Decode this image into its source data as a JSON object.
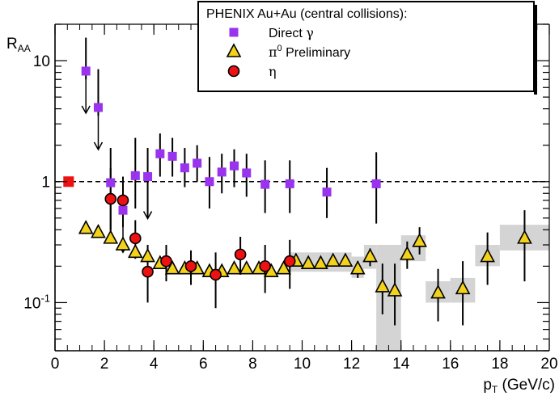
{
  "chart_data": {
    "type": "scatter",
    "title": "",
    "xlabel": {
      "main": "p",
      "sub": "T",
      "rest": " (GeV/c)"
    },
    "ylabel": {
      "main": "R",
      "sub": "AA"
    },
    "xlim": [
      0,
      20
    ],
    "ylim": [
      0.04,
      20
    ],
    "yscale": "log",
    "x_ticks": [
      "0",
      "2",
      "4",
      "6",
      "8",
      "10",
      "12",
      "14",
      "16",
      "18",
      "20"
    ],
    "y_ticks": [
      {
        "value": 0.1,
        "base": "10",
        "exp": "-1"
      },
      {
        "value": 1,
        "base": "1",
        "exp": ""
      },
      {
        "value": 10,
        "base": "10",
        "exp": ""
      }
    ],
    "reference_line": {
      "y": 1,
      "style": "dashed"
    },
    "normalization_marker": {
      "x": 0.55,
      "y": 1.0,
      "color": "#ee1111"
    },
    "legend": {
      "position": "top-right",
      "title": "PHENIX Au+Au (central collisions):",
      "entries": [
        {
          "label_main": "Direct ",
          "label_greek": "γ",
          "label_sup": "",
          "label_rest": "",
          "marker": "square",
          "color": "#9933ee"
        },
        {
          "label_main": "",
          "label_greek": "π",
          "label_sup": "0",
          "label_rest": " Preliminary",
          "marker": "triangle",
          "color": "#f2d21a"
        },
        {
          "label_main": "",
          "label_greek": "η",
          "label_sup": "",
          "label_rest": "",
          "marker": "circle",
          "color": "#ee1111"
        }
      ]
    },
    "series": [
      {
        "name": "Direct γ",
        "marker": "square",
        "color": "#9933ee",
        "points": [
          {
            "x": 1.25,
            "y": 8.2,
            "lo": 7.0,
            "hi": 15.5,
            "upper_limit_arrow": true
          },
          {
            "x": 1.75,
            "y": 4.1,
            "lo": 3.5,
            "hi": 8.5,
            "upper_limit_arrow": true
          },
          {
            "x": 2.25,
            "y": 0.98,
            "lo": 0.4,
            "hi": 1.9
          },
          {
            "x": 2.75,
            "y": 0.58,
            "lo": 0.48,
            "hi": 1.0,
            "upper_limit_arrow": true
          },
          {
            "x": 3.25,
            "y": 1.12,
            "lo": 0.6,
            "hi": 2.3
          },
          {
            "x": 3.75,
            "y": 1.1,
            "lo": 0.5,
            "hi": 1.9,
            "upper_limit_arrow": true
          },
          {
            "x": 4.25,
            "y": 1.7,
            "lo": 1.1,
            "hi": 2.5
          },
          {
            "x": 4.75,
            "y": 1.62,
            "lo": 1.1,
            "hi": 2.3
          },
          {
            "x": 5.25,
            "y": 1.3,
            "lo": 0.9,
            "hi": 1.9
          },
          {
            "x": 5.75,
            "y": 1.42,
            "lo": 1.0,
            "hi": 2.0
          },
          {
            "x": 6.25,
            "y": 1.0,
            "lo": 0.6,
            "hi": 1.6
          },
          {
            "x": 6.75,
            "y": 1.2,
            "lo": 0.8,
            "hi": 1.7
          },
          {
            "x": 7.25,
            "y": 1.35,
            "lo": 0.9,
            "hi": 1.85
          },
          {
            "x": 7.75,
            "y": 1.18,
            "lo": 0.75,
            "hi": 1.7
          },
          {
            "x": 8.5,
            "y": 0.95,
            "lo": 0.55,
            "hi": 1.5
          },
          {
            "x": 9.5,
            "y": 0.96,
            "lo": 0.55,
            "hi": 1.5
          },
          {
            "x": 11.0,
            "y": 0.82,
            "lo": 0.5,
            "hi": 1.3
          },
          {
            "x": 13.0,
            "y": 0.96,
            "lo": 0.45,
            "hi": 1.75
          }
        ]
      },
      {
        "name": "π0 Preliminary",
        "marker": "triangle",
        "color": "#f2d21a",
        "points": [
          {
            "x": 1.25,
            "y": 0.41,
            "lo": 0.4,
            "hi": 0.42
          },
          {
            "x": 1.75,
            "y": 0.38,
            "lo": 0.37,
            "hi": 0.39
          },
          {
            "x": 2.25,
            "y": 0.34,
            "lo": 0.33,
            "hi": 0.35
          },
          {
            "x": 2.75,
            "y": 0.3,
            "lo": 0.29,
            "hi": 0.31
          },
          {
            "x": 3.25,
            "y": 0.26,
            "lo": 0.25,
            "hi": 0.27
          },
          {
            "x": 3.75,
            "y": 0.24,
            "lo": 0.23,
            "hi": 0.25
          },
          {
            "x": 4.25,
            "y": 0.21,
            "lo": 0.2,
            "hi": 0.22
          },
          {
            "x": 4.75,
            "y": 0.19,
            "lo": 0.18,
            "hi": 0.2
          },
          {
            "x": 5.25,
            "y": 0.19,
            "lo": 0.18,
            "hi": 0.2
          },
          {
            "x": 5.75,
            "y": 0.19,
            "lo": 0.18,
            "hi": 0.2
          },
          {
            "x": 6.25,
            "y": 0.18,
            "lo": 0.17,
            "hi": 0.19
          },
          {
            "x": 6.75,
            "y": 0.18,
            "lo": 0.17,
            "hi": 0.19
          },
          {
            "x": 7.25,
            "y": 0.19,
            "lo": 0.18,
            "hi": 0.2
          },
          {
            "x": 7.75,
            "y": 0.19,
            "lo": 0.18,
            "hi": 0.2
          },
          {
            "x": 8.25,
            "y": 0.19,
            "lo": 0.18,
            "hi": 0.2
          },
          {
            "x": 8.75,
            "y": 0.18,
            "lo": 0.17,
            "hi": 0.19
          },
          {
            "x": 9.25,
            "y": 0.19,
            "lo": 0.18,
            "hi": 0.2
          },
          {
            "x": 9.75,
            "y": 0.22,
            "lo": 0.2,
            "hi": 0.24
          },
          {
            "x": 10.25,
            "y": 0.21,
            "lo": 0.19,
            "hi": 0.23
          },
          {
            "x": 10.75,
            "y": 0.21,
            "lo": 0.19,
            "hi": 0.23
          },
          {
            "x": 11.25,
            "y": 0.22,
            "lo": 0.2,
            "hi": 0.24
          },
          {
            "x": 11.75,
            "y": 0.22,
            "lo": 0.2,
            "hi": 0.24
          },
          {
            "x": 12.25,
            "y": 0.19,
            "lo": 0.16,
            "hi": 0.22
          },
          {
            "x": 12.75,
            "y": 0.24,
            "lo": 0.2,
            "hi": 0.28
          },
          {
            "x": 13.25,
            "y": 0.135,
            "lo": 0.08,
            "hi": 0.21
          },
          {
            "x": 13.75,
            "y": 0.125,
            "lo": 0.065,
            "hi": 0.21
          },
          {
            "x": 14.25,
            "y": 0.25,
            "lo": 0.19,
            "hi": 0.32
          },
          {
            "x": 14.75,
            "y": 0.32,
            "lo": 0.25,
            "hi": 0.42
          },
          {
            "x": 15.5,
            "y": 0.12,
            "lo": 0.07,
            "hi": 0.19
          },
          {
            "x": 16.5,
            "y": 0.13,
            "lo": 0.065,
            "hi": 0.22
          },
          {
            "x": 17.5,
            "y": 0.24,
            "lo": 0.14,
            "hi": 0.38
          },
          {
            "x": 19.0,
            "y": 0.34,
            "lo": 0.15,
            "hi": 0.58
          }
        ],
        "systematics": [
          {
            "x0": 9.5,
            "x1": 12.0,
            "lo": 0.18,
            "hi": 0.26
          },
          {
            "x0": 12.0,
            "x1": 12.5,
            "lo": 0.16,
            "hi": 0.24
          },
          {
            "x0": 12.5,
            "x1": 13.0,
            "lo": 0.19,
            "hi": 0.3
          },
          {
            "x0": 13.0,
            "x1": 14.0,
            "lo": 0.04,
            "hi": 0.3
          },
          {
            "x0": 14.0,
            "x1": 15.0,
            "lo": 0.22,
            "hi": 0.36
          },
          {
            "x0": 15.0,
            "x1": 16.0,
            "lo": 0.1,
            "hi": 0.15
          },
          {
            "x0": 16.0,
            "x1": 17.0,
            "lo": 0.1,
            "hi": 0.16
          },
          {
            "x0": 17.0,
            "x1": 18.0,
            "lo": 0.2,
            "hi": 0.3
          },
          {
            "x0": 18.0,
            "x1": 20.0,
            "lo": 0.27,
            "hi": 0.44
          }
        ]
      },
      {
        "name": "η",
        "marker": "circle",
        "color": "#ee1111",
        "points": [
          {
            "x": 2.25,
            "y": 0.72,
            "lo": 0.32,
            "hi": 1.3
          },
          {
            "x": 2.75,
            "y": 0.7,
            "lo": 0.42,
            "hi": 1.1
          },
          {
            "x": 3.25,
            "y": 0.34,
            "lo": 0.23,
            "hi": 0.48
          },
          {
            "x": 3.75,
            "y": 0.18,
            "lo": 0.1,
            "hi": 0.3
          },
          {
            "x": 4.5,
            "y": 0.22,
            "lo": 0.15,
            "hi": 0.3
          },
          {
            "x": 5.5,
            "y": 0.2,
            "lo": 0.14,
            "hi": 0.27
          },
          {
            "x": 6.5,
            "y": 0.17,
            "lo": 0.09,
            "hi": 0.26
          },
          {
            "x": 7.5,
            "y": 0.25,
            "lo": 0.17,
            "hi": 0.35
          },
          {
            "x": 8.5,
            "y": 0.2,
            "lo": 0.12,
            "hi": 0.3
          },
          {
            "x": 9.5,
            "y": 0.22,
            "lo": 0.13,
            "hi": 0.33
          }
        ]
      }
    ]
  }
}
